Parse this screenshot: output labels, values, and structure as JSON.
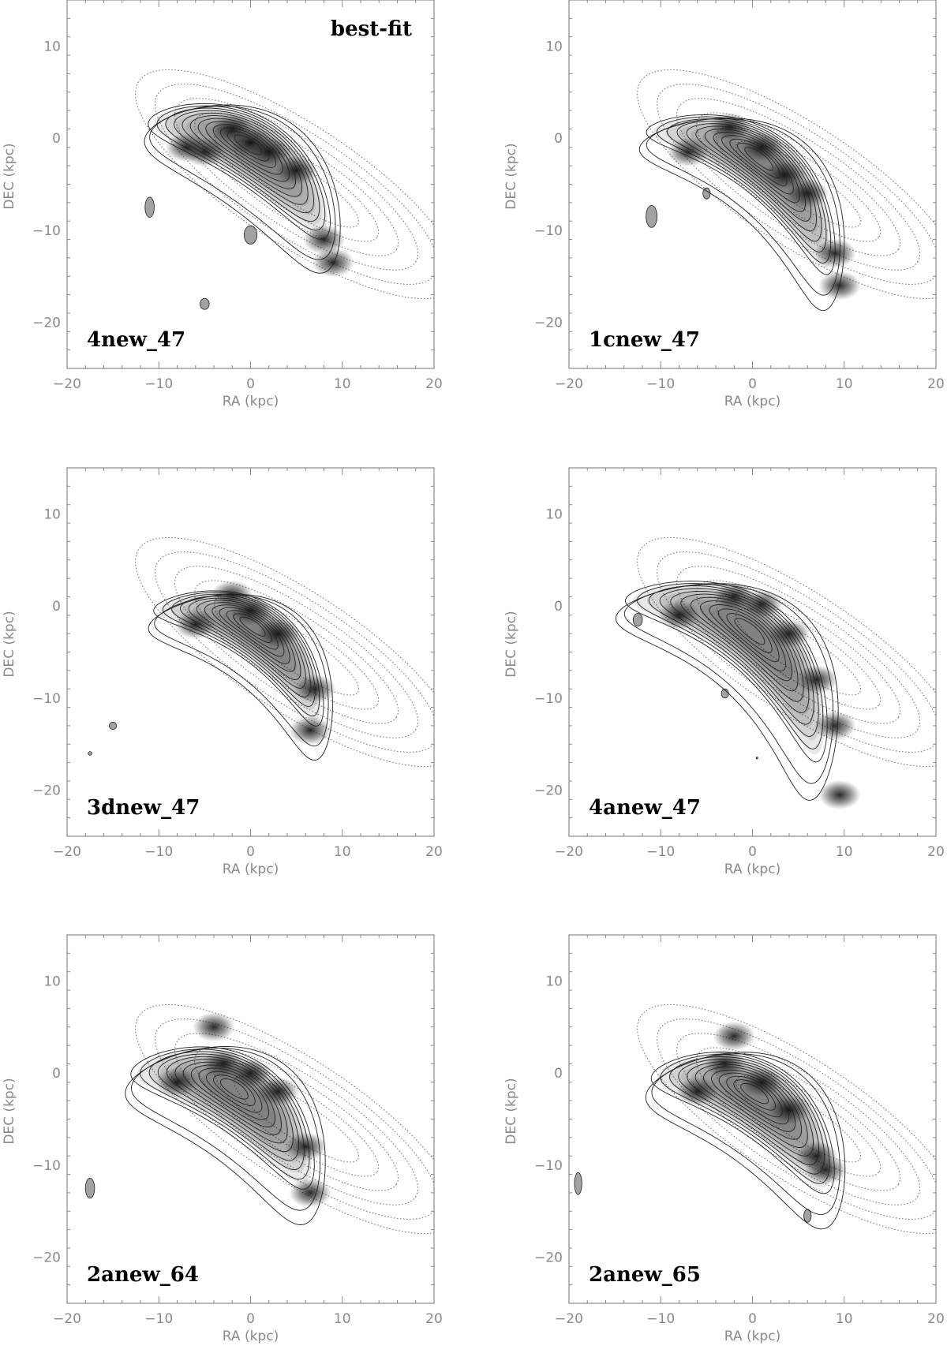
{
  "chart_data": [
    {
      "type": "contour",
      "panel_label": "4new_47",
      "annotation": "best-fit",
      "xlabel": "RA (kpc)",
      "ylabel": "DEC (kpc)",
      "xlim": [
        -20,
        20
      ],
      "ylim": [
        -25,
        15
      ],
      "xticks": [
        -20,
        -10,
        0,
        10,
        20
      ],
      "yticks": [
        10,
        0,
        -10,
        -20
      ],
      "grid": false,
      "structure": {
        "center": [
          0.5,
          -1.5
        ],
        "angle_deg": -33,
        "half_length": 10.5,
        "half_width": 3.2,
        "bend": 0.025,
        "knots": [
          [
            -2,
            1
          ],
          [
            0,
            -0.5
          ],
          [
            2,
            -1.5
          ],
          [
            5,
            -3.5
          ],
          [
            8,
            -11
          ],
          [
            9,
            -13.5
          ],
          [
            -5,
            -1.5
          ],
          [
            -7,
            -1
          ]
        ],
        "blobs": [
          [
            -11,
            -7.5,
            0.5,
            1.1
          ],
          [
            -5,
            -18,
            0.5,
            0.6
          ],
          [
            0,
            -10.5,
            0.7,
            1
          ]
        ]
      }
    },
    {
      "type": "contour",
      "panel_label": "1cnew_47",
      "xlabel": "RA (kpc)",
      "ylabel": "DEC (kpc)",
      "xlim": [
        -20,
        20
      ],
      "ylim": [
        -25,
        15
      ],
      "xticks": [
        -20,
        -10,
        0,
        10,
        20
      ],
      "yticks": [
        10,
        0,
        -10,
        -20
      ],
      "grid": false,
      "structure": {
        "center": [
          1.5,
          -3.0
        ],
        "angle_deg": -38,
        "half_length": 11.5,
        "half_width": 3.0,
        "bend": 0.03,
        "knots": [
          [
            -2.5,
            1.2
          ],
          [
            1,
            -1
          ],
          [
            3.5,
            -4
          ],
          [
            6,
            -6
          ],
          [
            9,
            -12.5
          ],
          [
            9.5,
            -16
          ],
          [
            -7,
            -1.5
          ]
        ],
        "blobs": [
          [
            -11,
            -8.5,
            0.6,
            1.2
          ],
          [
            -5,
            -6,
            0.4,
            0.6
          ]
        ]
      }
    },
    {
      "type": "contour",
      "panel_label": "3dnew_47",
      "xlabel": "RA (kpc)",
      "ylabel": "DEC (kpc)",
      "xlim": [
        -20,
        20
      ],
      "ylim": [
        -25,
        15
      ],
      "xticks": [
        -20,
        -10,
        0,
        10,
        20
      ],
      "yticks": [
        10,
        0,
        -10,
        -20
      ],
      "grid": false,
      "structure": {
        "center": [
          1.0,
          -3.0
        ],
        "angle_deg": -35,
        "half_length": 10.0,
        "half_width": 2.8,
        "bend": 0.035,
        "knots": [
          [
            -2,
            1.2
          ],
          [
            0,
            -0.5
          ],
          [
            3,
            -3
          ],
          [
            7,
            -9
          ],
          [
            6.5,
            -13.5
          ],
          [
            -6,
            -2
          ]
        ],
        "blobs": [
          [
            -15,
            -13,
            0.4,
            0.4
          ],
          [
            -17.5,
            -16,
            0.2,
            0.2
          ]
        ]
      }
    },
    {
      "type": "contour",
      "panel_label": "4anew_47",
      "xlabel": "RA (kpc)",
      "ylabel": "DEC (kpc)",
      "xlim": [
        -20,
        20
      ],
      "ylim": [
        -25,
        15
      ],
      "xticks": [
        -20,
        -10,
        0,
        10,
        20
      ],
      "yticks": [
        10,
        0,
        -10,
        -20
      ],
      "grid": false,
      "structure": {
        "center": [
          0.5,
          -3.5
        ],
        "angle_deg": -40,
        "half_length": 12.5,
        "half_width": 3.4,
        "bend": 0.03,
        "knots": [
          [
            -2,
            1
          ],
          [
            1,
            0.2
          ],
          [
            4,
            -3
          ],
          [
            7,
            -8
          ],
          [
            9,
            -13
          ],
          [
            9.5,
            -20.5
          ],
          [
            -8,
            -1
          ]
        ],
        "blobs": [
          [
            -12.5,
            -1.5,
            0.5,
            0.7
          ],
          [
            -3,
            -9.5,
            0.4,
            0.5
          ],
          [
            0.5,
            -16.5,
            0.1,
            0.1
          ]
        ]
      }
    },
    {
      "type": "contour",
      "panel_label": "2anew_64",
      "xlabel": "RA (kpc)",
      "ylabel": "DEC (kpc)",
      "xlim": [
        -20,
        20
      ],
      "ylim": [
        -25,
        15
      ],
      "xticks": [
        -20,
        -10,
        0,
        10,
        20
      ],
      "yticks": [
        10,
        0,
        -10,
        -20
      ],
      "grid": false,
      "structure": {
        "center": [
          -1.0,
          -2.5
        ],
        "angle_deg": -33,
        "half_length": 10.5,
        "half_width": 3.6,
        "bend": 0.03,
        "knots": [
          [
            -3,
            1
          ],
          [
            0,
            0
          ],
          [
            3,
            -2
          ],
          [
            6,
            -8
          ],
          [
            6.5,
            -13
          ],
          [
            -8,
            -1
          ],
          [
            -4,
            5
          ]
        ],
        "blobs": [
          [
            -17.5,
            -12.5,
            0.5,
            1.1
          ]
        ]
      }
    },
    {
      "type": "contour",
      "panel_label": "2anew_65",
      "xlabel": "RA (kpc)",
      "ylabel": "DEC (kpc)",
      "xlim": [
        -20,
        20
      ],
      "ylim": [
        -25,
        15
      ],
      "xticks": [
        -20,
        -10,
        0,
        10,
        20
      ],
      "yticks": [
        10,
        0,
        -10,
        -20
      ],
      "grid": false,
      "structure": {
        "center": [
          1.0,
          -3.0
        ],
        "angle_deg": -33,
        "half_length": 10.5,
        "half_width": 3.5,
        "bend": 0.03,
        "knots": [
          [
            -3,
            1
          ],
          [
            1,
            -1
          ],
          [
            4,
            -4
          ],
          [
            7,
            -9
          ],
          [
            8,
            -10.5
          ],
          [
            -6,
            -2
          ],
          [
            -2,
            4
          ]
        ],
        "blobs": [
          [
            -19,
            -12,
            0.4,
            1.2
          ],
          [
            6,
            -15.5,
            0.4,
            0.7
          ]
        ]
      }
    }
  ],
  "background_contours": {
    "description_free": true,
    "center": [
      5,
      -5
    ],
    "angle_deg": -33,
    "levels": [
      [
        8,
        2.0
      ],
      [
        10.5,
        2.9
      ],
      [
        13,
        3.8
      ],
      [
        15.5,
        4.7
      ],
      [
        18,
        5.6
      ],
      [
        20.5,
        6.5
      ]
    ]
  },
  "colors": {
    "axis": "#8a8a8a",
    "contour_solid": "#222222",
    "contour_dotted": "#777777",
    "label": "#000000"
  }
}
